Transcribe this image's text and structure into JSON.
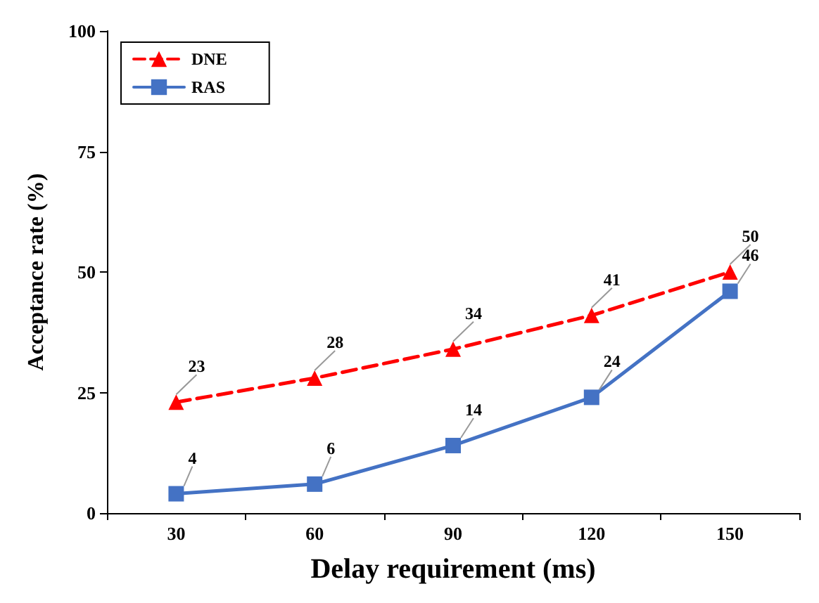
{
  "chart_data": {
    "type": "line",
    "xlabel": "Delay requirement (ms)",
    "ylabel": "Acceptance rate (%)",
    "categories": [
      "30",
      "60",
      "90",
      "120",
      "150"
    ],
    "series": [
      {
        "name": "DNE",
        "color": "#ff0000",
        "values": [
          23,
          28,
          34,
          41,
          50
        ],
        "marker": "triangle",
        "line_style": "dashed"
      },
      {
        "name": "RAS",
        "color": "#4472c4",
        "values": [
          4,
          6,
          14,
          24,
          46
        ],
        "marker": "square",
        "line_style": "solid"
      }
    ],
    "ylim": [
      0,
      100
    ],
    "yticks": [
      0,
      25,
      50,
      75,
      100
    ],
    "grid": false,
    "legend": "top left",
    "data_labels": true
  }
}
